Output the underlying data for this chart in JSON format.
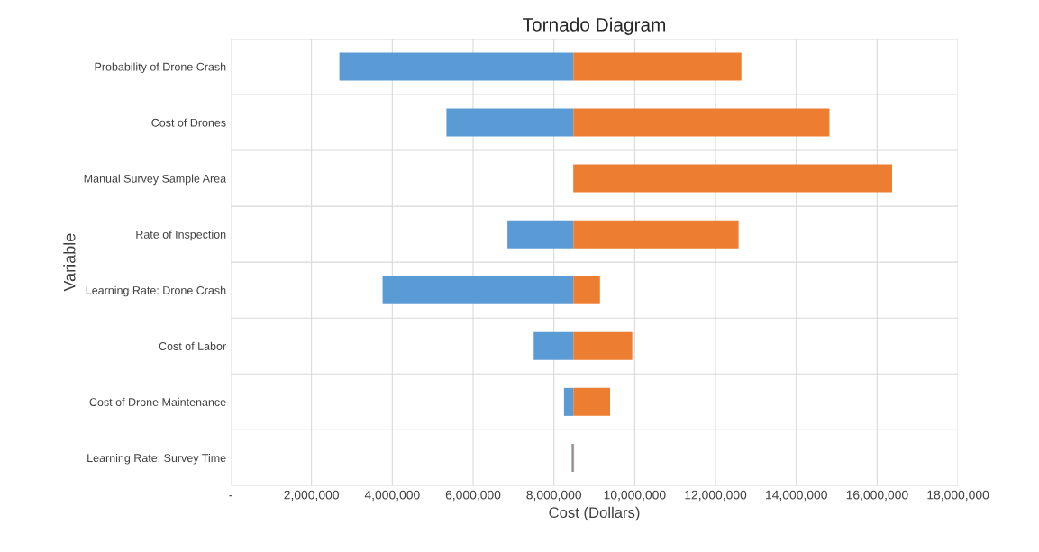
{
  "chart_data": {
    "type": "bar",
    "orientation": "horizontal",
    "title": "Tornado Diagram",
    "xlabel": "Cost (Dollars)",
    "ylabel": "Variable",
    "categories": [
      "Probability of Drone Crash",
      "Cost of Drones",
      "Manual Survey Sample Area",
      "Rate of Inspection",
      "Learning Rate: Drone Crash",
      "Cost of Labor",
      "Cost of Drone Maintenance",
      "Learning Rate: Survey Time"
    ],
    "series": [
      {
        "color": "#5b9bd5",
        "base": [
          2690000,
          5340000,
          null,
          6850000,
          3760000,
          7500000,
          8250000,
          8440000
        ],
        "values": [
          5790000,
          3140000,
          null,
          1630000,
          4720000,
          980000,
          230000,
          40000
        ]
      },
      {
        "color": "#ed7d31",
        "base": [
          8480000,
          8480000,
          8480000,
          8480000,
          8480000,
          8480000,
          8480000,
          8480000
        ],
        "values": [
          4160000,
          6340000,
          7890000,
          4090000,
          660000,
          1460000,
          910000,
          20000
        ]
      }
    ],
    "xlim": [
      0,
      18000000
    ],
    "xticks": [
      {
        "value": 0,
        "label": "-"
      },
      {
        "value": 2000000,
        "label": "2,000,000"
      },
      {
        "value": 4000000,
        "label": "4,000,000"
      },
      {
        "value": 6000000,
        "label": "6,000,000"
      },
      {
        "value": 8000000,
        "label": "8,000,000"
      },
      {
        "value": 10000000,
        "label": "10,000,000"
      },
      {
        "value": 12000000,
        "label": "12,000,000"
      },
      {
        "value": 14000000,
        "label": "14,000,000"
      },
      {
        "value": 16000000,
        "label": "16,000,000"
      },
      {
        "value": 18000000,
        "label": "18,000,000"
      }
    ],
    "grid": true
  }
}
